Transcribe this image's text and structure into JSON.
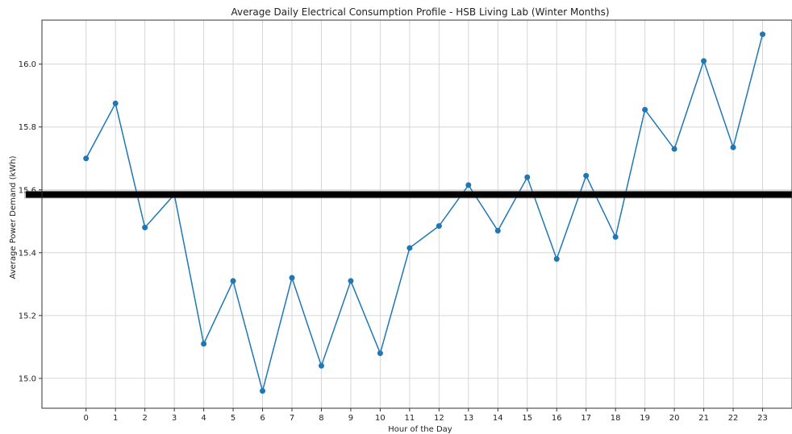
{
  "chart_data": {
    "type": "line",
    "title": "Average Daily Electrical Consumption Profile - HSB Living Lab (Winter Months)",
    "xlabel": "Hour of the Day",
    "ylabel": "Average Power Demand (kWh)",
    "x": [
      0,
      1,
      2,
      3,
      4,
      5,
      6,
      7,
      8,
      9,
      10,
      11,
      12,
      13,
      14,
      15,
      16,
      17,
      18,
      19,
      20,
      21,
      22,
      23
    ],
    "xlim": [
      -1.5,
      24.0
    ],
    "ylim": [
      14.905,
      16.14
    ],
    "yticks": [
      15.0,
      15.2,
      15.4,
      15.6,
      15.8,
      16.0
    ],
    "ytick_labels": [
      "15.0",
      "15.2",
      "15.4",
      "15.6",
      "15.8",
      "16.0"
    ],
    "grid": true,
    "series": [
      {
        "color": "#1f77b4",
        "marker": "circle",
        "values": [
          15.7,
          15.875,
          15.48,
          15.585,
          15.11,
          15.31,
          14.96,
          15.32,
          15.04,
          15.31,
          15.08,
          15.415,
          15.485,
          15.615,
          15.47,
          15.64,
          15.38,
          15.645,
          15.45,
          15.855,
          15.73,
          16.01,
          15.735,
          16.095
        ]
      }
    ],
    "hline": {
      "y": 15.585,
      "color": "#000000"
    }
  }
}
